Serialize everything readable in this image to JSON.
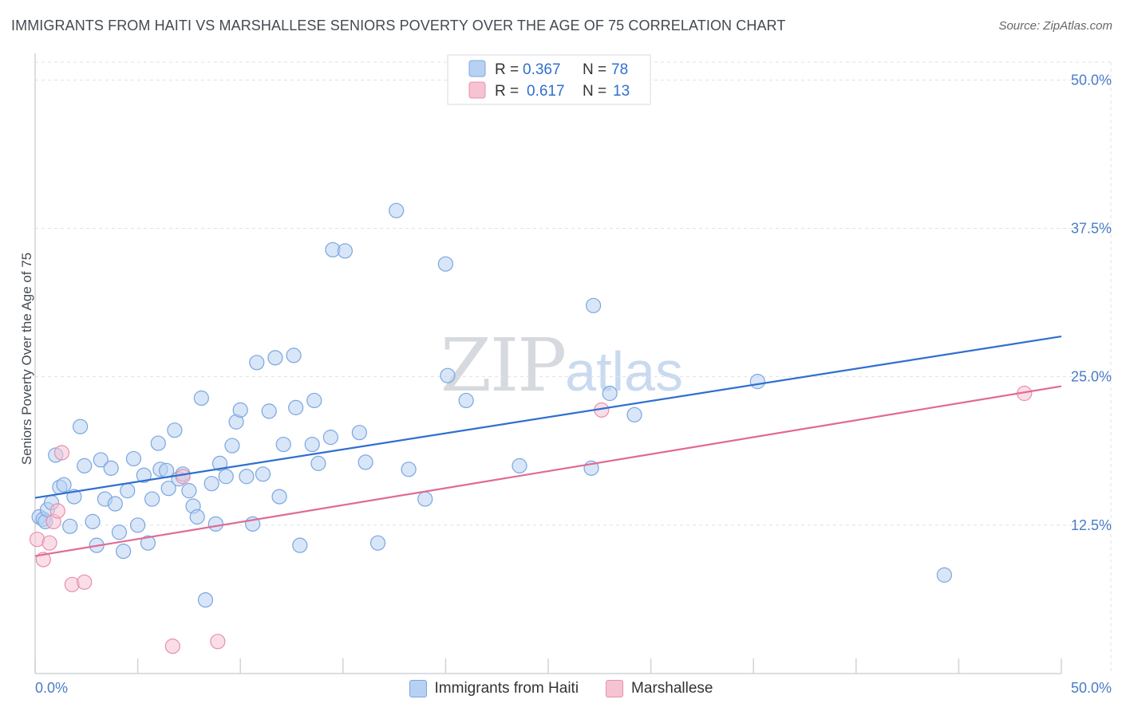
{
  "header": {
    "title": "IMMIGRANTS FROM HAITI VS MARSHALLESE SENIORS POVERTY OVER THE AGE OF 75 CORRELATION CHART",
    "source": "Source: ZipAtlas.com"
  },
  "watermark": {
    "zip": "ZIP",
    "atlas": "atlas"
  },
  "colors": {
    "blue_fill": "#b8d1f3",
    "blue_stroke": "#7aa6e0",
    "blue_line": "#2f6fcf",
    "pink_fill": "#f6c3d3",
    "pink_stroke": "#e78fac",
    "pink_line": "#e06a94",
    "grid": "#dde1e6",
    "tick_text": "#4a7cc7"
  },
  "legend": {
    "rows": [
      {
        "r_label": "R = ",
        "r_value": "0.367",
        "n_label": "N = ",
        "n_value": "78"
      },
      {
        "r_label": "R = ",
        "r_value": "0.617",
        "n_label": "N = ",
        "n_value": "13"
      }
    ]
  },
  "bottom_legend": {
    "items": [
      "Immigrants from Haiti",
      "Marshallese"
    ]
  },
  "chart_data": {
    "type": "scatter",
    "title": "IMMIGRANTS FROM HAITI VS MARSHALLESE SENIORS POVERTY OVER THE AGE OF 75 CORRELATION CHART",
    "xlabel": "",
    "ylabel": "Seniors Poverty Over the Age of 75",
    "xlim": [
      0,
      50
    ],
    "ylim": [
      0,
      51.5
    ],
    "x_tick_labels": [
      "0.0%",
      "50.0%"
    ],
    "y_ticks": [
      12.5,
      25.0,
      37.5,
      50.0
    ],
    "y_tick_labels": [
      "12.5%",
      "25.0%",
      "37.5%",
      "50.0%"
    ],
    "grid": true,
    "series": [
      {
        "name": "Immigrants from Haiti",
        "R": 0.367,
        "N": 78,
        "trend": {
          "x": [
            0,
            50
          ],
          "y": [
            14.8,
            28.4
          ]
        },
        "points": [
          [
            0.2,
            13.2
          ],
          [
            0.4,
            13.0
          ],
          [
            0.5,
            12.8
          ],
          [
            0.6,
            13.8
          ],
          [
            0.8,
            14.4
          ],
          [
            1.0,
            18.4
          ],
          [
            1.2,
            15.7
          ],
          [
            1.4,
            15.9
          ],
          [
            1.7,
            12.4
          ],
          [
            1.9,
            14.9
          ],
          [
            2.2,
            20.8
          ],
          [
            2.4,
            17.5
          ],
          [
            2.8,
            12.8
          ],
          [
            3.0,
            10.8
          ],
          [
            3.2,
            18.0
          ],
          [
            3.4,
            14.7
          ],
          [
            3.7,
            17.3
          ],
          [
            3.9,
            14.3
          ],
          [
            4.1,
            11.9
          ],
          [
            4.3,
            10.3
          ],
          [
            4.5,
            15.4
          ],
          [
            4.8,
            18.1
          ],
          [
            5.0,
            12.5
          ],
          [
            5.3,
            16.7
          ],
          [
            5.5,
            11.0
          ],
          [
            5.7,
            14.7
          ],
          [
            6.0,
            19.4
          ],
          [
            6.1,
            17.2
          ],
          [
            6.4,
            17.1
          ],
          [
            6.5,
            15.6
          ],
          [
            6.8,
            20.5
          ],
          [
            7.0,
            16.4
          ],
          [
            7.2,
            16.8
          ],
          [
            7.5,
            15.4
          ],
          [
            7.7,
            14.1
          ],
          [
            7.9,
            13.2
          ],
          [
            8.1,
            23.2
          ],
          [
            8.3,
            6.2
          ],
          [
            8.6,
            16.0
          ],
          [
            8.8,
            12.6
          ],
          [
            9.3,
            16.6
          ],
          [
            9.0,
            17.7
          ],
          [
            9.6,
            19.2
          ],
          [
            9.8,
            21.2
          ],
          [
            10.0,
            22.2
          ],
          [
            10.3,
            16.6
          ],
          [
            10.6,
            12.6
          ],
          [
            10.8,
            26.2
          ],
          [
            11.1,
            16.8
          ],
          [
            11.4,
            22.1
          ],
          [
            11.7,
            26.6
          ],
          [
            11.9,
            14.9
          ],
          [
            12.1,
            19.3
          ],
          [
            12.6,
            26.8
          ],
          [
            12.7,
            22.4
          ],
          [
            12.9,
            10.8
          ],
          [
            13.5,
            19.3
          ],
          [
            13.6,
            23.0
          ],
          [
            13.8,
            17.7
          ],
          [
            14.4,
            19.9
          ],
          [
            14.5,
            35.7
          ],
          [
            15.1,
            35.6
          ],
          [
            15.8,
            20.3
          ],
          [
            16.1,
            17.8
          ],
          [
            16.7,
            11.0
          ],
          [
            17.6,
            39.0
          ],
          [
            18.2,
            17.2
          ],
          [
            19.0,
            14.7
          ],
          [
            20.0,
            34.5
          ],
          [
            20.1,
            25.1
          ],
          [
            21.0,
            23.0
          ],
          [
            23.6,
            17.5
          ],
          [
            27.1,
            17.3
          ],
          [
            27.2,
            31.0
          ],
          [
            28.0,
            23.6
          ],
          [
            29.2,
            21.8
          ],
          [
            35.2,
            24.6
          ],
          [
            44.3,
            8.3
          ]
        ]
      },
      {
        "name": "Marshallese",
        "R": 0.617,
        "N": 13,
        "trend": {
          "x": [
            0,
            50
          ],
          "y": [
            9.9,
            24.2
          ]
        },
        "points": [
          [
            0.1,
            11.3
          ],
          [
            0.4,
            9.6
          ],
          [
            0.7,
            11.0
          ],
          [
            0.9,
            12.8
          ],
          [
            1.1,
            13.7
          ],
          [
            1.3,
            18.6
          ],
          [
            1.8,
            7.5
          ],
          [
            2.4,
            7.7
          ],
          [
            6.7,
            2.3
          ],
          [
            7.2,
            16.6
          ],
          [
            8.9,
            2.7
          ],
          [
            27.6,
            22.2
          ],
          [
            48.2,
            23.6
          ]
        ]
      }
    ]
  }
}
